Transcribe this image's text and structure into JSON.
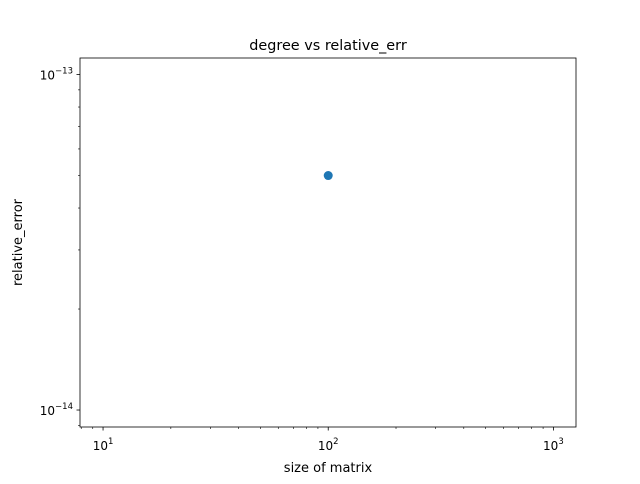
{
  "chart_data": {
    "type": "scatter",
    "title": "degree vs relative_err",
    "xlabel": "size of matrix",
    "ylabel": "relative_error",
    "xscale": "log",
    "yscale": "log",
    "xlim": [
      7.9,
      1260
    ],
    "ylim": [
      8.9e-15,
      1.12e-13
    ],
    "grid": false,
    "legend": "none",
    "x_major_ticks": [
      {
        "value": 10,
        "base": "10",
        "exp": "1"
      },
      {
        "value": 100,
        "base": "10",
        "exp": "2"
      },
      {
        "value": 1000,
        "base": "10",
        "exp": "3"
      }
    ],
    "y_major_ticks": [
      {
        "value": 1e-14,
        "base": "10",
        "exp": "−14"
      },
      {
        "value": 1e-13,
        "base": "10",
        "exp": "−13"
      }
    ],
    "series": [
      {
        "color": "#1f77b4",
        "points": [
          {
            "x": 100,
            "y": 5e-14
          }
        ]
      }
    ]
  }
}
